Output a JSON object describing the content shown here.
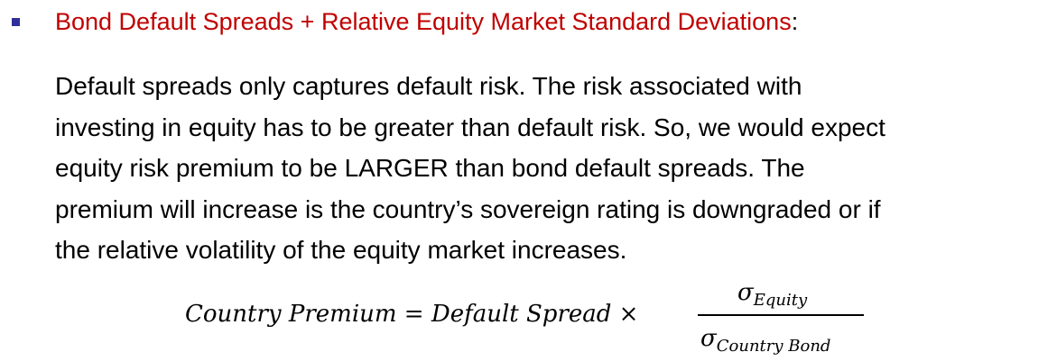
{
  "bullet": {
    "title": "Bond Default Spreads + Relative Equity Market Standard Deviations",
    "colon": ":"
  },
  "paragraph": {
    "lines": [
      "Default spreads only captures default risk. The risk associated with",
      "investing in equity has to be greater than default risk. So, we would expect",
      "equity risk premium to be LARGER than bond default spreads. The",
      "premium will increase is the country’s sovereign rating is downgraded or if",
      "the relative volatility of the equity market increases."
    ]
  },
  "formula": {
    "lhs": "Country Premium = Default Spread ×",
    "numerator_symbol": "σ",
    "numerator_subscript": "Equity",
    "denominator_symbol": "σ",
    "denominator_subscript": "Country Bond"
  },
  "colors": {
    "title": "#c00000",
    "bullet": "#2f2f9a",
    "text": "#000000"
  }
}
